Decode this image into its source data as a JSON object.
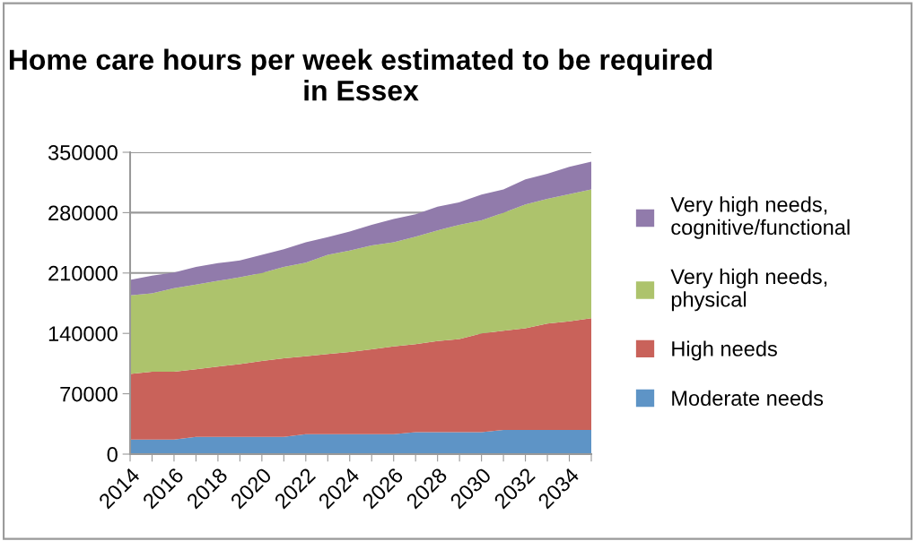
{
  "chart_data": {
    "type": "area",
    "stacked": true,
    "title": "Home care hours per week estimated to be required in Essex",
    "categories": [
      "2014",
      null,
      "2016",
      null,
      "2018",
      null,
      "2020",
      null,
      "2022",
      null,
      "2024",
      null,
      "2026",
      null,
      "2028",
      null,
      "2030",
      null,
      "2032",
      null,
      "2034",
      null
    ],
    "series": [
      {
        "name": "Moderate needs",
        "color": "#5e94c6",
        "values": [
          17000,
          17000,
          17000,
          20000,
          20000,
          20000,
          20000,
          20000,
          23000,
          23000,
          23000,
          23000,
          23000,
          25500,
          25500,
          25500,
          25500,
          28000,
          28000,
          28000,
          28000,
          28000
        ]
      },
      {
        "name": "High needs",
        "color": "#c9625a",
        "values": [
          76000,
          78500,
          78500,
          78500,
          81500,
          84500,
          88000,
          91000,
          90500,
          93000,
          95500,
          98500,
          102000,
          102000,
          105500,
          108000,
          114500,
          115000,
          118000,
          123500,
          126000,
          129500
        ]
      },
      {
        "name": "Very high needs, physical",
        "color": "#adc36c",
        "values": [
          91000,
          91000,
          97000,
          98000,
          99500,
          100500,
          102000,
          106000,
          108500,
          115000,
          117500,
          120500,
          120500,
          124500,
          128500,
          132500,
          131000,
          137000,
          143500,
          144500,
          147500,
          149500
        ]
      },
      {
        "name": "Very high needs, cognitive/functional",
        "color": "#917bab",
        "values": [
          18000,
          20500,
          18000,
          20500,
          20500,
          19500,
          21000,
          20500,
          23500,
          20500,
          22000,
          24000,
          27000,
          26000,
          27500,
          26000,
          30000,
          27000,
          29000,
          29000,
          31500,
          32000
        ]
      }
    ],
    "ylim": [
      0,
      350000
    ],
    "yticks": [
      0,
      70000,
      140000,
      210000,
      280000,
      350000
    ],
    "grid": "y",
    "legend": "right"
  }
}
